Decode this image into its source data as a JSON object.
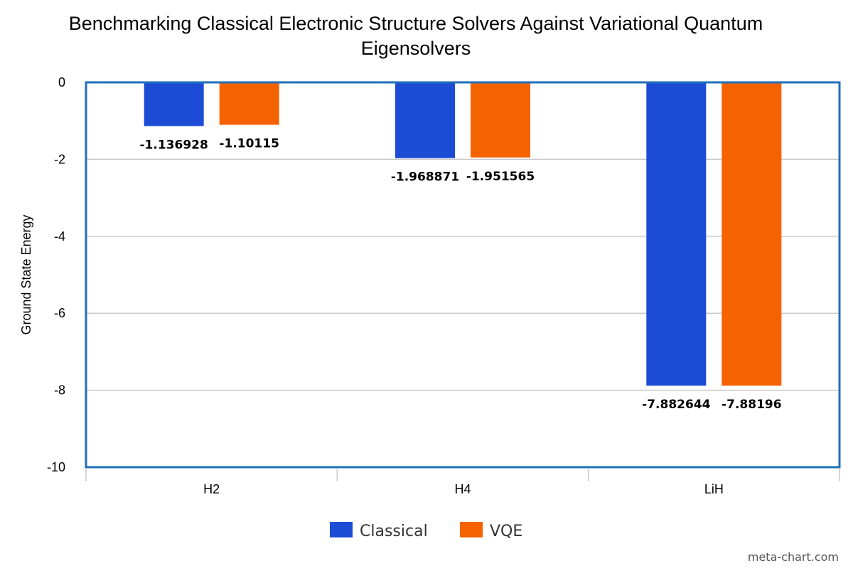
{
  "chart_data": {
    "type": "bar",
    "title_lines": [
      "Benchmarking Classical Electronic Structure Solvers Against Variational Quantum",
      "Eigensolvers"
    ],
    "xlabel": "",
    "ylabel": "Ground State Energy",
    "categories": [
      "H2",
      "H4",
      "LiH"
    ],
    "series": [
      {
        "name": "Classical",
        "color": "#1c4bd6",
        "values": [
          -1.136928,
          -1.968871,
          -7.882644
        ],
        "labels": [
          "-1.136928",
          "-1.968871",
          "-7.882644"
        ]
      },
      {
        "name": "VQE",
        "color": "#f56200",
        "values": [
          -1.10115,
          -1.951565,
          -7.88196
        ],
        "labels": [
          "-1.10115",
          "-1.951565",
          "-7.88196"
        ]
      }
    ],
    "ylim": [
      -10,
      0
    ],
    "yticks": [
      0,
      -2,
      -4,
      -6,
      -8,
      -10
    ],
    "ytick_labels": [
      "0",
      "-2",
      "-4",
      "-6",
      "-8",
      "-10"
    ],
    "grid": true,
    "legend_position": "bottom-center",
    "plot_border_color": "#1f6fb8",
    "grid_color": "#c8c8c8"
  },
  "watermark": "meta-chart.com"
}
